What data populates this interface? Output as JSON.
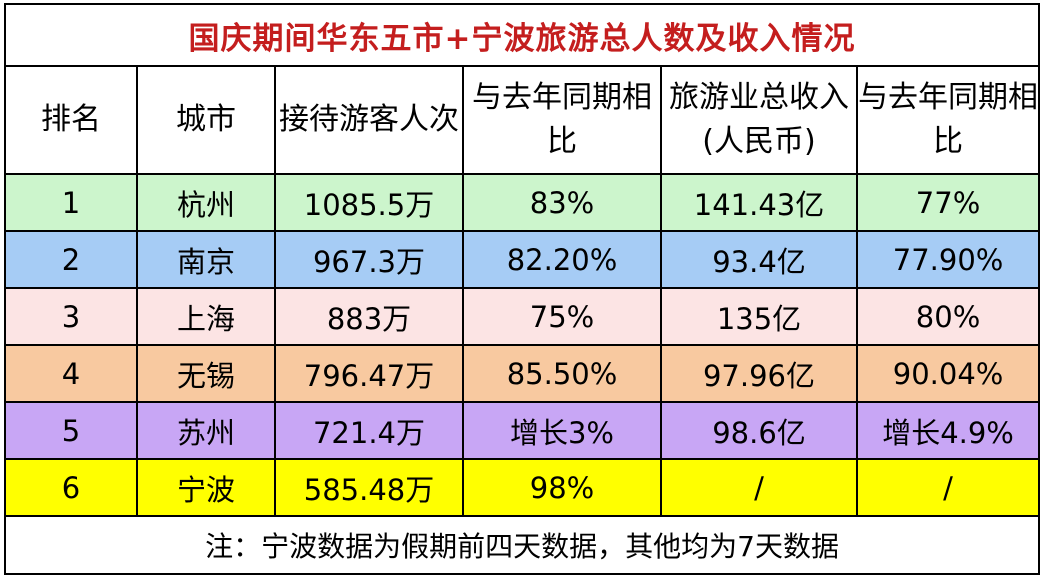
{
  "title": "国庆期间华东五市+宁波旅游总人数及收入情况",
  "headers": [
    "排名",
    "城市",
    "接待游客人次",
    "与去年同期相比",
    "旅游业总收入(人民币)",
    "与去年同期相比"
  ],
  "rows": [
    {
      "rank": "1",
      "city": "杭州",
      "visitors": "1085.5万",
      "visitors_yoy": "83%",
      "revenue": "141.43亿",
      "revenue_yoy": "77%",
      "bg": "#ccf5cc"
    },
    {
      "rank": "2",
      "city": "南京",
      "visitors": "967.3万",
      "visitors_yoy": "82.20%",
      "revenue": "93.4亿",
      "revenue_yoy": "77.90%",
      "bg": "#a6ccf5"
    },
    {
      "rank": "3",
      "city": "上海",
      "visitors": "883万",
      "visitors_yoy": "75%",
      "revenue": "135亿",
      "revenue_yoy": "80%",
      "bg": "#fce4e4"
    },
    {
      "rank": "4",
      "city": "无锡",
      "visitors": "796.47万",
      "visitors_yoy": "85.50%",
      "revenue": "97.96亿",
      "revenue_yoy": "90.04%",
      "bg": "#f8c9a0"
    },
    {
      "rank": "5",
      "city": "苏州",
      "visitors": "721.4万",
      "visitors_yoy": "增长3%",
      "revenue": "98.6亿",
      "revenue_yoy": "增长4.9%",
      "bg": "#c8a6f5"
    },
    {
      "rank": "6",
      "city": "宁波",
      "visitors": "585.48万",
      "visitors_yoy": "98%",
      "revenue": "/",
      "revenue_yoy": "/",
      "bg": "#ffff00"
    }
  ],
  "note": "注：宁波数据为假期前四天数据，其他均为7天数据"
}
